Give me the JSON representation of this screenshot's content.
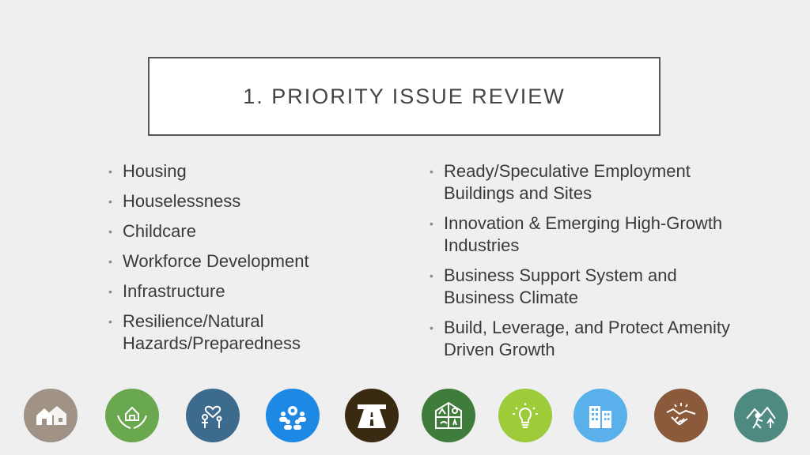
{
  "title": "1. PRIORITY ISSUE REVIEW",
  "left_items": [
    "Housing",
    "Houselessness",
    "Childcare",
    "Workforce Development",
    "Infrastructure",
    "Resilience/Natural Hazards/Preparedness"
  ],
  "right_items": [
    "Ready/Speculative Employment Buildings and Sites",
    "Innovation & Emerging High-Growth Industries",
    "Business Support System and Business Climate",
    "Build, Leverage, and Protect Amenity Driven Growth"
  ],
  "bullet": "•",
  "icons": [
    {
      "name": "houses-icon",
      "color": "#a09386"
    },
    {
      "name": "home-in-hands-icon",
      "color": "#6aa84f"
    },
    {
      "name": "family-heart-icon",
      "color": "#3d6b8e"
    },
    {
      "name": "team-gear-icon",
      "color": "#1e88e5"
    },
    {
      "name": "road-tunnel-icon",
      "color": "#3a2a12"
    },
    {
      "name": "nature-hazards-icon",
      "color": "#3f7b3a"
    },
    {
      "name": "lightbulb-icon",
      "color": "#9ccc3a"
    },
    {
      "name": "buildings-icon",
      "color": "#5ab0ea"
    },
    {
      "name": "handshake-icon",
      "color": "#8a5a3a"
    },
    {
      "name": "hiker-mountains-icon",
      "color": "#4f8a80"
    }
  ]
}
